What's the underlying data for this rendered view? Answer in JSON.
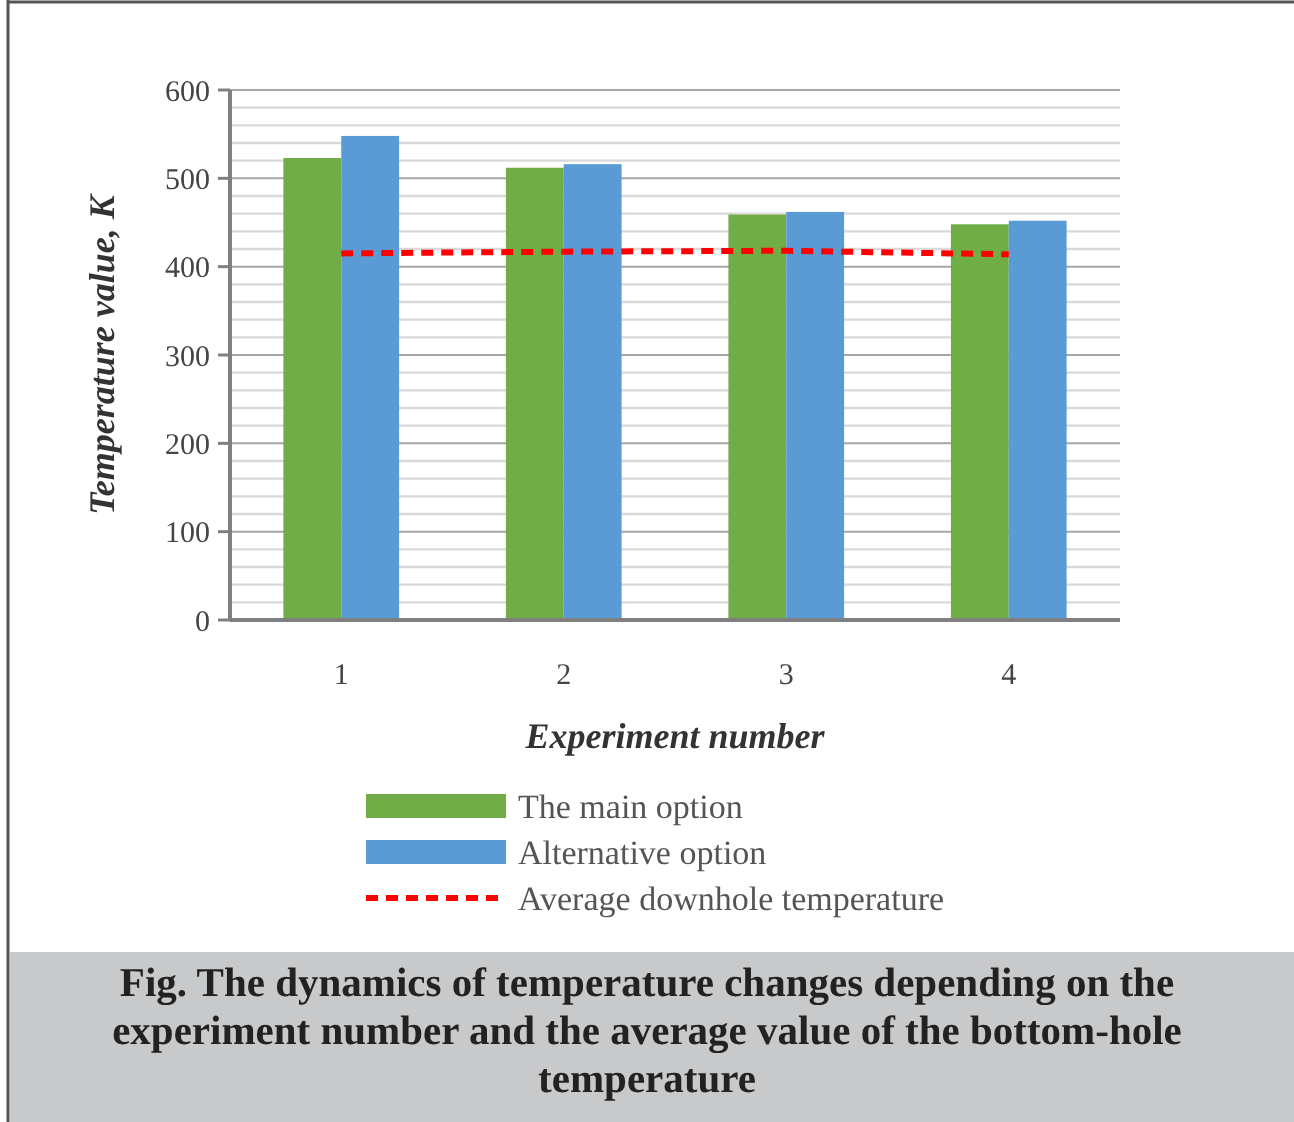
{
  "chart_data": {
    "type": "bar",
    "xlabel": "Experiment number",
    "ylabel": "Temperature value, K",
    "categories": [
      "1",
      "2",
      "3",
      "4"
    ],
    "series": [
      {
        "name": "The main option",
        "color": "#70ad47",
        "values": [
          523,
          512,
          459,
          448
        ]
      },
      {
        "name": "Alternative option",
        "color": "#5b9bd5",
        "values": [
          548,
          516,
          462,
          452
        ]
      },
      {
        "name": "Average downhole temperature",
        "type": "line",
        "color": "#ff0000",
        "line_style": "dashed",
        "values": [
          415,
          417,
          418,
          414
        ]
      }
    ],
    "ylim": [
      0,
      600
    ],
    "yticks": [
      0,
      {
        "value": 20,
        "label": null
      },
      {
        "value": 40,
        "label": null
      },
      {
        "value": 60,
        "label": null
      },
      {
        "value": 80,
        "label": null
      },
      100,
      {
        "value": 120,
        "label": null
      },
      {
        "value": 140,
        "label": null
      },
      {
        "value": 160,
        "label": null
      },
      {
        "value": 180,
        "label": null
      },
      200,
      {
        "value": 220,
        "label": null
      },
      {
        "value": 240,
        "label": null
      },
      {
        "value": 260,
        "label": null
      },
      {
        "value": 280,
        "label": null
      },
      300,
      {
        "value": 320,
        "label": null
      },
      {
        "value": 340,
        "label": null
      },
      {
        "value": 360,
        "label": null
      },
      {
        "value": 380,
        "label": null
      },
      400,
      {
        "value": 420,
        "label": null
      },
      {
        "value": 440,
        "label": null
      },
      {
        "value": 460,
        "label": null
      },
      {
        "value": 480,
        "label": null
      },
      500,
      {
        "value": 520,
        "label": null
      },
      {
        "value": 540,
        "label": null
      },
      {
        "value": 560,
        "label": null
      },
      {
        "value": 580,
        "label": null
      },
      600
    ],
    "grid": true,
    "legend": "bottom",
    "annotations": [
      "Fig. The dynamics of temperature changes depending on the experiment number and the average value of the bottom-hole temperature"
    ]
  }
}
